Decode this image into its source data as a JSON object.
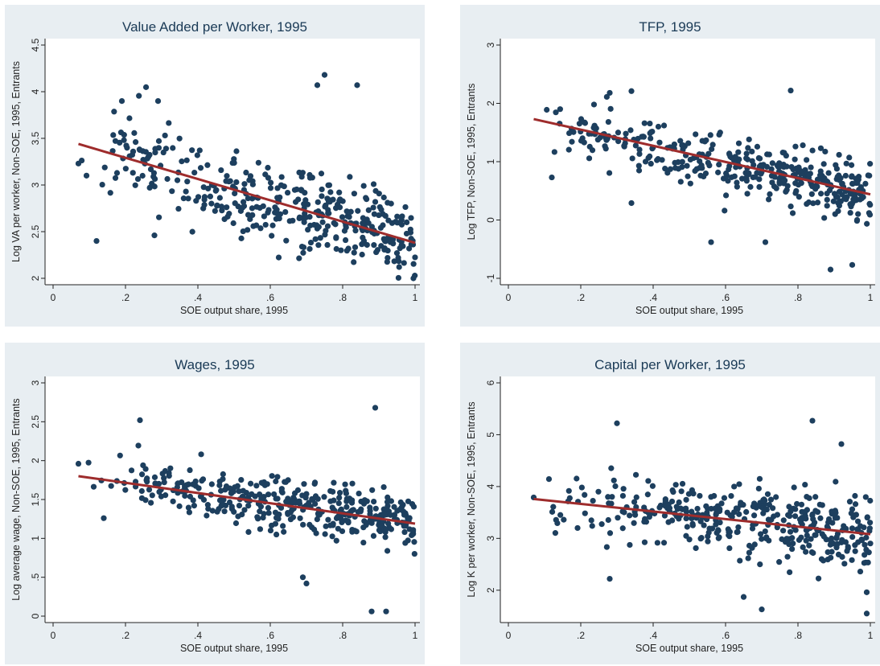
{
  "chart_data": [
    {
      "type": "scatter",
      "title": "Value Added per Worker, 1995",
      "xlabel": "SOE output share, 1995",
      "ylabel": "Log VA per worker, Non-SOE, 1995, Entrants",
      "xlim": [
        0,
        1
      ],
      "ylim": [
        2,
        4.5
      ],
      "xticks": [
        "0",
        ".2",
        ".4",
        ".6",
        ".8",
        "1"
      ],
      "yticks": [
        "2",
        "2.5",
        "3",
        "3.5",
        "4",
        "4.5"
      ],
      "fit_line": {
        "x": [
          0.07,
          1.0
        ],
        "y": [
          3.44,
          2.38
        ]
      },
      "colors": {
        "points": "#1d3f5e",
        "fit": "#9e2c2c",
        "background": "#e8eef2"
      },
      "points": {
        "n": 380,
        "seed": 11,
        "x_min": 0.07,
        "x_max": 1.0,
        "x_skew": 0.6,
        "intercept": 3.52,
        "slope": -1.14,
        "noise": 0.42,
        "y_min": 2.0,
        "y_max": 4.2,
        "extra": [
          [
            0.75,
            4.18
          ],
          [
            0.73,
            4.07
          ],
          [
            0.84,
            4.07
          ],
          [
            0.19,
            3.9
          ],
          [
            0.29,
            3.9
          ],
          [
            0.12,
            2.4
          ],
          [
            0.28,
            2.46
          ],
          [
            0.07,
            3.23
          ]
        ]
      }
    },
    {
      "type": "scatter",
      "title": "TFP, 1995",
      "xlabel": "SOE output share, 1995",
      "ylabel": "Log TFP, Non-SOE, 1995, Entrants",
      "xlim": [
        0,
        1
      ],
      "ylim": [
        -1,
        3
      ],
      "xticks": [
        "0",
        ".2",
        ".4",
        ".6",
        ".8",
        "1"
      ],
      "yticks": [
        "-1",
        "0",
        "1",
        "2",
        "3"
      ],
      "fit_line": {
        "x": [
          0.07,
          1.0
        ],
        "y": [
          1.73,
          0.44
        ]
      },
      "colors": {
        "points": "#1d3f5e",
        "fit": "#9e2c2c",
        "background": "#e8eef2"
      },
      "points": {
        "n": 380,
        "seed": 23,
        "x_min": 0.07,
        "x_max": 1.0,
        "x_skew": 0.6,
        "intercept": 1.83,
        "slope": -1.39,
        "noise": 0.42,
        "y_min": -0.9,
        "y_max": 2.25,
        "extra": [
          [
            0.78,
            2.22
          ],
          [
            0.34,
            2.21
          ],
          [
            0.28,
            2.18
          ],
          [
            0.56,
            -0.38
          ],
          [
            0.71,
            -0.38
          ],
          [
            0.89,
            -0.85
          ],
          [
            0.95,
            -0.77
          ],
          [
            0.34,
            0.29
          ],
          [
            0.12,
            0.73
          ]
        ]
      }
    },
    {
      "type": "scatter",
      "title": "Wages, 1995",
      "xlabel": "SOE output share, 1995",
      "ylabel": "Log average wage, Non-SOE, 1995, Entrants",
      "xlim": [
        0,
        1
      ],
      "ylim": [
        0,
        3
      ],
      "xticks": [
        "0",
        ".2",
        ".4",
        ".6",
        ".8",
        "1"
      ],
      "yticks": [
        "0",
        ".5",
        "1",
        "1.5",
        "2",
        "2.5",
        "3"
      ],
      "fit_line": {
        "x": [
          0.07,
          1.0
        ],
        "y": [
          1.8,
          1.19
        ]
      },
      "colors": {
        "points": "#1d3f5e",
        "fit": "#9e2c2c",
        "background": "#e8eef2"
      },
      "points": {
        "n": 380,
        "seed": 37,
        "x_min": 0.07,
        "x_max": 1.0,
        "x_skew": 0.6,
        "intercept": 1.85,
        "slope": -0.66,
        "noise": 0.3,
        "y_min": 0.4,
        "y_max": 2.5,
        "extra": [
          [
            0.24,
            2.52
          ],
          [
            0.89,
            2.68
          ],
          [
            0.88,
            0.06
          ],
          [
            0.92,
            0.06
          ],
          [
            0.7,
            0.42
          ],
          [
            0.69,
            0.5
          ],
          [
            0.14,
            1.26
          ],
          [
            0.07,
            1.96
          ]
        ]
      }
    },
    {
      "type": "scatter",
      "title": "Capital per Worker, 1995",
      "xlabel": "SOE output share, 1995",
      "ylabel": "Log K per worker, Non-SOE, 1995, Entrants",
      "xlim": [
        0,
        1
      ],
      "ylim": [
        1.5,
        6
      ],
      "xticks": [
        "0",
        ".2",
        ".4",
        ".6",
        ".8",
        "1"
      ],
      "yticks": [
        "2",
        "3",
        "4",
        "5",
        "6"
      ],
      "fit_line": {
        "x": [
          0.07,
          1.0
        ],
        "y": [
          3.76,
          3.08
        ]
      },
      "colors": {
        "points": "#1d3f5e",
        "fit": "#9e2c2c",
        "background": "#e8eef2"
      },
      "points": {
        "n": 380,
        "seed": 53,
        "x_min": 0.07,
        "x_max": 1.0,
        "x_skew": 0.6,
        "intercept": 3.82,
        "slope": -0.73,
        "noise": 0.62,
        "y_min": 2.0,
        "y_max": 4.9,
        "extra": [
          [
            0.84,
            5.27
          ],
          [
            0.3,
            5.22
          ],
          [
            0.92,
            4.82
          ],
          [
            0.99,
            1.96
          ],
          [
            0.99,
            1.55
          ],
          [
            0.65,
            1.87
          ],
          [
            0.7,
            1.63
          ],
          [
            0.28,
            2.22
          ],
          [
            0.07,
            3.79
          ]
        ]
      }
    }
  ]
}
